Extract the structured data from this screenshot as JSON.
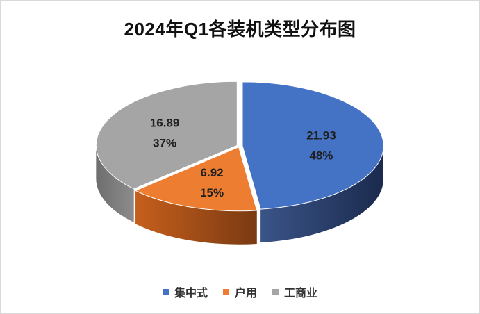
{
  "chart_data": {
    "type": "pie",
    "title": "2024年Q1各装机类型分布图",
    "categories": [
      "集中式",
      "户用",
      "工商业"
    ],
    "values": [
      21.93,
      6.92,
      16.89
    ],
    "percent_labels": [
      "48%",
      "15%",
      "37%"
    ],
    "colors": [
      "#4472C4",
      "#ED7D31",
      "#A5A5A5"
    ],
    "style": "3d-exploded",
    "legend_position": "bottom",
    "data_labels": "value-and-percent"
  }
}
